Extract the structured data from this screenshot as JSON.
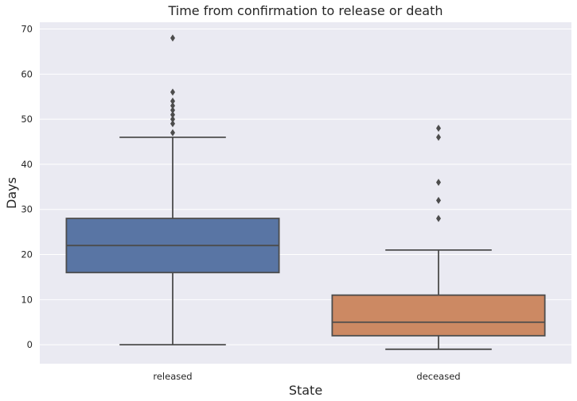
{
  "chart_data": {
    "type": "boxplot",
    "title": "Time from confirmation to release or death",
    "xlabel": "State",
    "ylabel": "Days",
    "ylim": [
      -4.2,
      71.5
    ],
    "yticks": [
      0,
      10,
      20,
      30,
      40,
      50,
      60,
      70
    ],
    "grid": true,
    "categories": [
      "released",
      "deceased"
    ],
    "series": [
      {
        "category": "released",
        "color": "#5975a4",
        "whisker_low": 0,
        "q1": 16,
        "median": 22,
        "q3": 28,
        "whisker_high": 46,
        "outliers": [
          47,
          49,
          50,
          51,
          52,
          53,
          54,
          56,
          68
        ]
      },
      {
        "category": "deceased",
        "color": "#cc8963",
        "whisker_low": -1,
        "q1": 2,
        "median": 5,
        "q3": 11,
        "whisker_high": 21,
        "outliers": [
          28,
          32,
          36,
          46,
          48
        ]
      }
    ],
    "colors": {
      "background": "#eaeaf2",
      "grid": "#ffffff",
      "line": "#4c4c4c"
    }
  }
}
